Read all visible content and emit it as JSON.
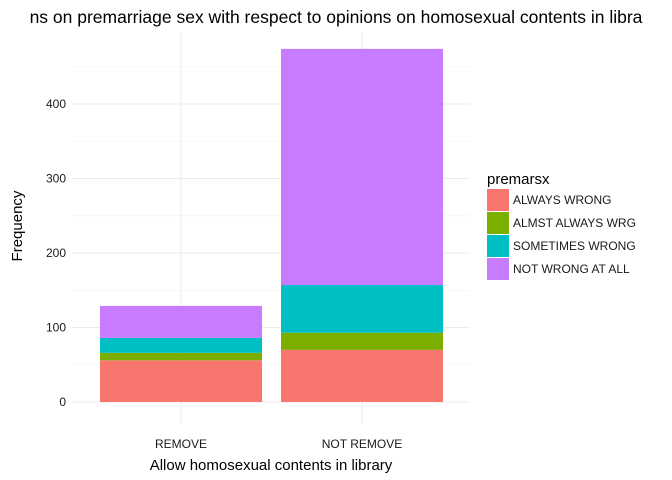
{
  "chart_data": {
    "type": "bar",
    "stacked": true,
    "title": "ns on premarriage sex with respect to opinions on homosexual contents in libra",
    "xlabel": "Allow homosexual contents in library",
    "ylabel": "Frequency",
    "categories": [
      "REMOVE",
      "NOT REMOVE"
    ],
    "ylim": [
      0,
      475
    ],
    "yticks": [
      0,
      100,
      200,
      300,
      400
    ],
    "grid": true,
    "legend": {
      "title": "premarsx",
      "position": "right"
    },
    "series": [
      {
        "name": "ALWAYS WRONG",
        "color": "#F8766D",
        "values": [
          56,
          70
        ]
      },
      {
        "name": "ALMST ALWAYS WRG",
        "color": "#7CAE00",
        "values": [
          10,
          23
        ]
      },
      {
        "name": "SOMETIMES WRONG",
        "color": "#00BFC4",
        "values": [
          20,
          64
        ]
      },
      {
        "name": "NOT WRONG AT ALL",
        "color": "#C77CFF",
        "values": [
          43,
          317
        ]
      }
    ]
  }
}
